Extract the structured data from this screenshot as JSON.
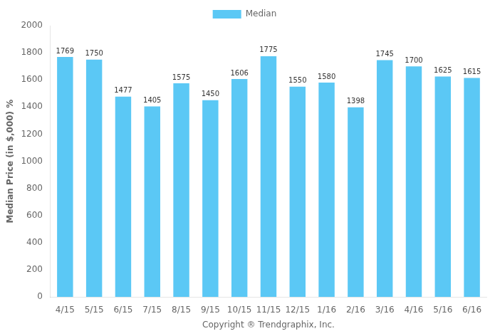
{
  "chart_data": {
    "type": "bar",
    "categories": [
      "4/15",
      "5/15",
      "6/15",
      "7/15",
      "8/15",
      "9/15",
      "10/15",
      "11/15",
      "12/15",
      "1/16",
      "2/16",
      "3/16",
      "4/16",
      "5/16",
      "6/16"
    ],
    "series": [
      {
        "name": "Median",
        "color": "#5BC8F5",
        "values": [
          1769,
          1750,
          1477,
          1405,
          1575,
          1450,
          1606,
          1775,
          1550,
          1580,
          1398,
          1745,
          1700,
          1625,
          1615
        ]
      }
    ],
    "ylabel": "Median Price (in $,000) %",
    "xlabel": "Copyright ® Trendgraphix, Inc.",
    "ylim": [
      0,
      2000
    ],
    "yticks": [
      0,
      200,
      400,
      600,
      800,
      1000,
      1200,
      1400,
      1600,
      1800,
      2000
    ],
    "grid": false,
    "legend": "top",
    "data_labels": true
  }
}
